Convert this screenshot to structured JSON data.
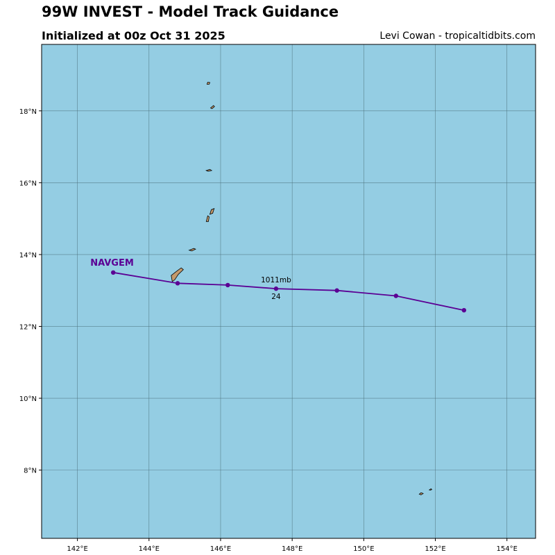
{
  "header": {
    "title": "99W INVEST - Model Track Guidance",
    "subtitle": "Initialized at 00z Oct 31 2025",
    "credit": "Levi Cowan - tropicaltidbits.com"
  },
  "colors": {
    "ocean": "#94cde3",
    "land": "#c49a6c",
    "grid": "#4a6e78",
    "track": "#5b0094"
  },
  "map": {
    "lon_range": [
      141.0,
      154.8
    ],
    "lat_range": [
      6.1,
      19.85
    ],
    "lon_ticks": [
      {
        "value": 142,
        "label": "142°E"
      },
      {
        "value": 144,
        "label": "144°E"
      },
      {
        "value": 146,
        "label": "146°E"
      },
      {
        "value": 148,
        "label": "148°E"
      },
      {
        "value": 150,
        "label": "150°E"
      },
      {
        "value": 152,
        "label": "152°E"
      },
      {
        "value": 154,
        "label": "154°E"
      }
    ],
    "lat_ticks": [
      {
        "value": 8,
        "label": "8°N"
      },
      {
        "value": 10,
        "label": "10°N"
      },
      {
        "value": 12,
        "label": "12°N"
      },
      {
        "value": 14,
        "label": "14°N"
      },
      {
        "value": 16,
        "label": "16°N"
      },
      {
        "value": 18,
        "label": "18°N"
      }
    ],
    "islands": [
      {
        "name": "guam",
        "outline": [
          [
            144.65,
            13.25
          ],
          [
            144.62,
            13.42
          ],
          [
            144.75,
            13.52
          ],
          [
            144.9,
            13.63
          ],
          [
            144.96,
            13.58
          ],
          [
            144.82,
            13.45
          ],
          [
            144.72,
            13.3
          ]
        ]
      },
      {
        "name": "rota",
        "outline": [
          [
            145.12,
            14.12
          ],
          [
            145.25,
            14.17
          ],
          [
            145.3,
            14.15
          ],
          [
            145.2,
            14.1
          ]
        ]
      },
      {
        "name": "tinian",
        "outline": [
          [
            145.6,
            14.92
          ],
          [
            145.64,
            15.08
          ],
          [
            145.68,
            15.05
          ],
          [
            145.66,
            14.92
          ]
        ]
      },
      {
        "name": "saipan",
        "outline": [
          [
            145.7,
            15.12
          ],
          [
            145.74,
            15.25
          ],
          [
            145.82,
            15.28
          ],
          [
            145.78,
            15.15
          ]
        ]
      },
      {
        "name": "anatahan",
        "outline": [
          [
            145.6,
            16.34
          ],
          [
            145.7,
            16.37
          ],
          [
            145.75,
            16.34
          ],
          [
            145.65,
            16.32
          ]
        ]
      },
      {
        "name": "pagan",
        "outline": [
          [
            145.72,
            18.08
          ],
          [
            145.8,
            18.15
          ],
          [
            145.83,
            18.12
          ],
          [
            145.76,
            18.06
          ]
        ]
      },
      {
        "name": "agrihan",
        "outline": [
          [
            145.62,
            18.74
          ],
          [
            145.64,
            18.8
          ],
          [
            145.7,
            18.79
          ],
          [
            145.68,
            18.74
          ]
        ]
      },
      {
        "name": "chuuk-1",
        "outline": [
          [
            151.55,
            7.33
          ],
          [
            151.6,
            7.37
          ],
          [
            151.66,
            7.35
          ],
          [
            151.6,
            7.31
          ]
        ]
      },
      {
        "name": "chuuk-2",
        "outline": [
          [
            151.83,
            7.45
          ],
          [
            151.88,
            7.48
          ],
          [
            151.9,
            7.46
          ],
          [
            151.86,
            7.44
          ]
        ]
      }
    ]
  },
  "tracks": [
    {
      "name": "NAVGEM",
      "color": "#5b0094",
      "points": [
        {
          "lon": 143.0,
          "lat": 13.5
        },
        {
          "lon": 144.8,
          "lat": 13.2
        },
        {
          "lon": 146.2,
          "lat": 13.15
        },
        {
          "lon": 147.55,
          "lat": 13.05
        },
        {
          "lon": 149.25,
          "lat": 13.0
        },
        {
          "lon": 150.9,
          "lat": 12.85
        },
        {
          "lon": 152.8,
          "lat": 12.45
        }
      ],
      "annotation": {
        "point_index": 3,
        "pressure": "1011mb",
        "hour": "24"
      }
    }
  ]
}
